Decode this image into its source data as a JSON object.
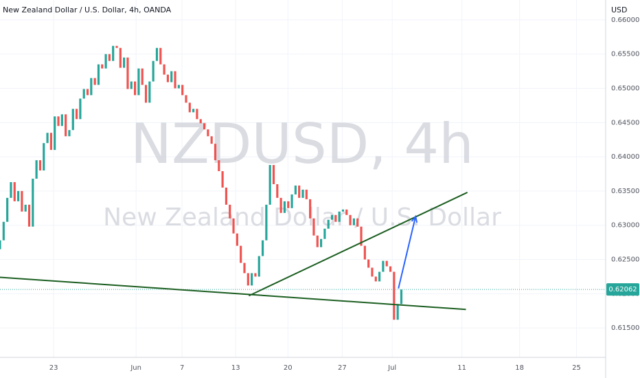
{
  "chart_data": {
    "type": "candlestick",
    "title": "New Zealand Dollar / U.S. Dollar, 4h, OANDA",
    "watermark_symbol": "NZDUSD, 4h",
    "watermark_name": "New Zealand Dollar / U.S. Dollar",
    "y_axis_unit": "USD",
    "last_price": 0.62062,
    "up_color": "#26a69a",
    "down_color": "#ef5350",
    "xlim": [
      0,
      166
    ],
    "ylim": [
      0.6107,
      0.6629
    ],
    "xticks": [
      {
        "value": 14.7,
        "label": "23"
      },
      {
        "value": 37.3,
        "label": "Jun"
      },
      {
        "value": 49.9,
        "label": "7"
      },
      {
        "value": 64.6,
        "label": "13"
      },
      {
        "value": 78.9,
        "label": "20"
      },
      {
        "value": 93.8,
        "label": "27"
      },
      {
        "value": 107.5,
        "label": "Jul"
      },
      {
        "value": 126.6,
        "label": "11"
      },
      {
        "value": 142.4,
        "label": "18"
      },
      {
        "value": 158,
        "label": "25"
      }
    ],
    "yticks": [
      {
        "value": 0.615,
        "label": "0.61500"
      },
      {
        "value": 0.62,
        "label": "0.62000"
      },
      {
        "value": 0.625,
        "label": "0.62500"
      },
      {
        "value": 0.63,
        "label": "0.63000"
      },
      {
        "value": 0.635,
        "label": "0.63500"
      },
      {
        "value": 0.64,
        "label": "0.64000"
      },
      {
        "value": 0.645,
        "label": "0.64500"
      },
      {
        "value": 0.65,
        "label": "0.65000"
      },
      {
        "value": 0.655,
        "label": "0.65500"
      },
      {
        "value": 0.66,
        "label": "0.66000"
      }
    ],
    "grid": true,
    "x": [
      0,
      1,
      2,
      3,
      4,
      5,
      6,
      7,
      8,
      9,
      10,
      11,
      12,
      13,
      14,
      15,
      16,
      17,
      18,
      19,
      20,
      21,
      22,
      23,
      24,
      25,
      26,
      27,
      28,
      29,
      30,
      31,
      32,
      33,
      34,
      35,
      36,
      37,
      38,
      39,
      40,
      41,
      42,
      43,
      44,
      45,
      46,
      47,
      48,
      49,
      50,
      51,
      52,
      53,
      54,
      55,
      56,
      57,
      58,
      59,
      60,
      61,
      62,
      63,
      64,
      65,
      66,
      67,
      68,
      69,
      70,
      71,
      72,
      73,
      74,
      75,
      76,
      77,
      78,
      79,
      80,
      81,
      82,
      83,
      84,
      85,
      86,
      87,
      88,
      89,
      90,
      91,
      92,
      93,
      94,
      95,
      96,
      97,
      98,
      99,
      100,
      101,
      102,
      103,
      104,
      105,
      106,
      107,
      108,
      109,
      110
    ],
    "open": [
      0.6265,
      0.6278,
      0.6305,
      0.634,
      0.6363,
      0.6335,
      0.635,
      0.632,
      0.633,
      0.6298,
      0.6368,
      0.6395,
      0.638,
      0.642,
      0.6435,
      0.641,
      0.6459,
      0.6445,
      0.6462,
      0.643,
      0.6439,
      0.647,
      0.6455,
      0.6485,
      0.6499,
      0.649,
      0.6515,
      0.6505,
      0.6535,
      0.6529,
      0.655,
      0.654,
      0.6562,
      0.6559,
      0.653,
      0.6545,
      0.6499,
      0.651,
      0.649,
      0.6529,
      0.6505,
      0.6479,
      0.651,
      0.654,
      0.6559,
      0.6535,
      0.652,
      0.6509,
      0.6525,
      0.65,
      0.6505,
      0.649,
      0.6479,
      0.6465,
      0.647,
      0.6455,
      0.6449,
      0.644,
      0.643,
      0.6419,
      0.6395,
      0.6379,
      0.6355,
      0.633,
      0.631,
      0.6288,
      0.627,
      0.6245,
      0.623,
      0.6212,
      0.623,
      0.6225,
      0.6255,
      0.6278,
      0.633,
      0.6388,
      0.636,
      0.634,
      0.6318,
      0.6335,
      0.6325,
      0.6345,
      0.6358,
      0.634,
      0.6352,
      0.6338,
      0.631,
      0.6285,
      0.6268,
      0.628,
      0.6295,
      0.6308,
      0.6315,
      0.6305,
      0.632,
      0.6323,
      0.6315,
      0.63,
      0.631,
      0.6298,
      0.627,
      0.625,
      0.6238,
      0.6225,
      0.6218,
      0.6232,
      0.6248,
      0.624,
      0.6232,
      0.6162,
      0.6185
    ],
    "close": [
      0.6278,
      0.6305,
      0.634,
      0.6363,
      0.6335,
      0.635,
      0.632,
      0.633,
      0.6298,
      0.6368,
      0.6395,
      0.638,
      0.642,
      0.6435,
      0.641,
      0.6459,
      0.6445,
      0.6462,
      0.643,
      0.6439,
      0.647,
      0.6455,
      0.6485,
      0.6499,
      0.649,
      0.6515,
      0.6505,
      0.6535,
      0.6529,
      0.655,
      0.654,
      0.6562,
      0.6559,
      0.653,
      0.6545,
      0.6499,
      0.651,
      0.649,
      0.6529,
      0.6505,
      0.6479,
      0.651,
      0.654,
      0.6559,
      0.6535,
      0.652,
      0.6509,
      0.6525,
      0.65,
      0.6505,
      0.649,
      0.6479,
      0.6465,
      0.647,
      0.6455,
      0.6449,
      0.644,
      0.643,
      0.6419,
      0.6395,
      0.6379,
      0.6355,
      0.633,
      0.631,
      0.6288,
      0.627,
      0.6245,
      0.623,
      0.6212,
      0.623,
      0.6225,
      0.6255,
      0.6278,
      0.633,
      0.6388,
      0.636,
      0.634,
      0.6318,
      0.6335,
      0.6325,
      0.6345,
      0.6358,
      0.634,
      0.6352,
      0.6338,
      0.631,
      0.6285,
      0.6268,
      0.628,
      0.6295,
      0.6308,
      0.6315,
      0.6305,
      0.632,
      0.6323,
      0.6315,
      0.63,
      0.631,
      0.6298,
      0.627,
      0.625,
      0.6238,
      0.6225,
      0.6218,
      0.6232,
      0.6248,
      0.624,
      0.6232,
      0.6162,
      0.6185,
      0.6206
    ],
    "lines": [
      {
        "color": "#1b5e20",
        "x": [
          0,
          127.7
        ],
        "y": [
          0.6224,
          0.6177
        ]
      },
      {
        "color": "#1b5e20",
        "x": [
          68.2,
          128.1
        ],
        "y": [
          0.6197,
          0.6348
        ]
      },
      {
        "color": "#2962ff",
        "x": [
          109.2,
          113.9
        ],
        "y": [
          0.62077,
          0.63128
        ],
        "arrow": true
      }
    ]
  }
}
